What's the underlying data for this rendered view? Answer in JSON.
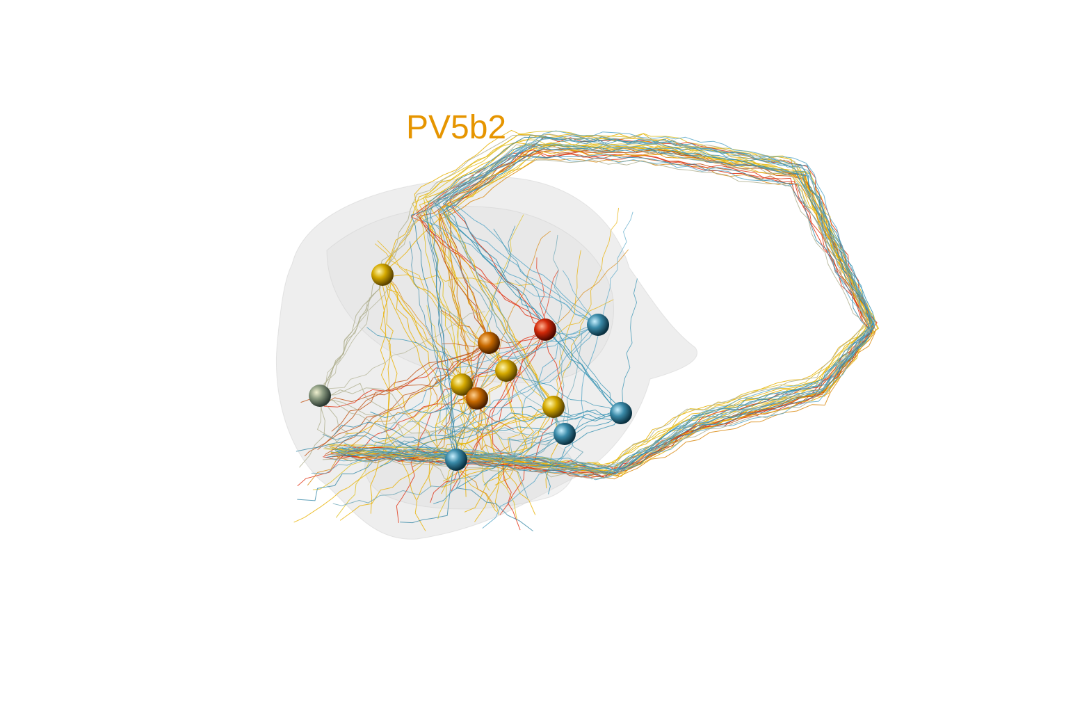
{
  "scene": {
    "label": "PV5b2",
    "label_color": "#e69500",
    "mesh_color": "#d9d9d9",
    "background": "#ffffff"
  },
  "neurons": [
    {
      "color": "#e8b000",
      "soma": "gold"
    },
    {
      "color": "#e8b000",
      "soma": "gold"
    },
    {
      "color": "#e0c020",
      "soma": "gold"
    },
    {
      "color": "#d98a10",
      "soma": "orange"
    },
    {
      "color": "#c05010",
      "soma": "orange"
    },
    {
      "color": "#e03010",
      "soma": "red"
    },
    {
      "color": "#e8b000",
      "soma": "gold"
    },
    {
      "color": "#5aa8c8",
      "soma": "teal"
    },
    {
      "color": "#2f8fb0",
      "soma": "teal"
    },
    {
      "color": "#6aa5b5",
      "soma": "teal"
    },
    {
      "color": "#3a8aa8",
      "soma": "teal"
    },
    {
      "color": "#b0b090",
      "soma": "olive-grey"
    }
  ]
}
